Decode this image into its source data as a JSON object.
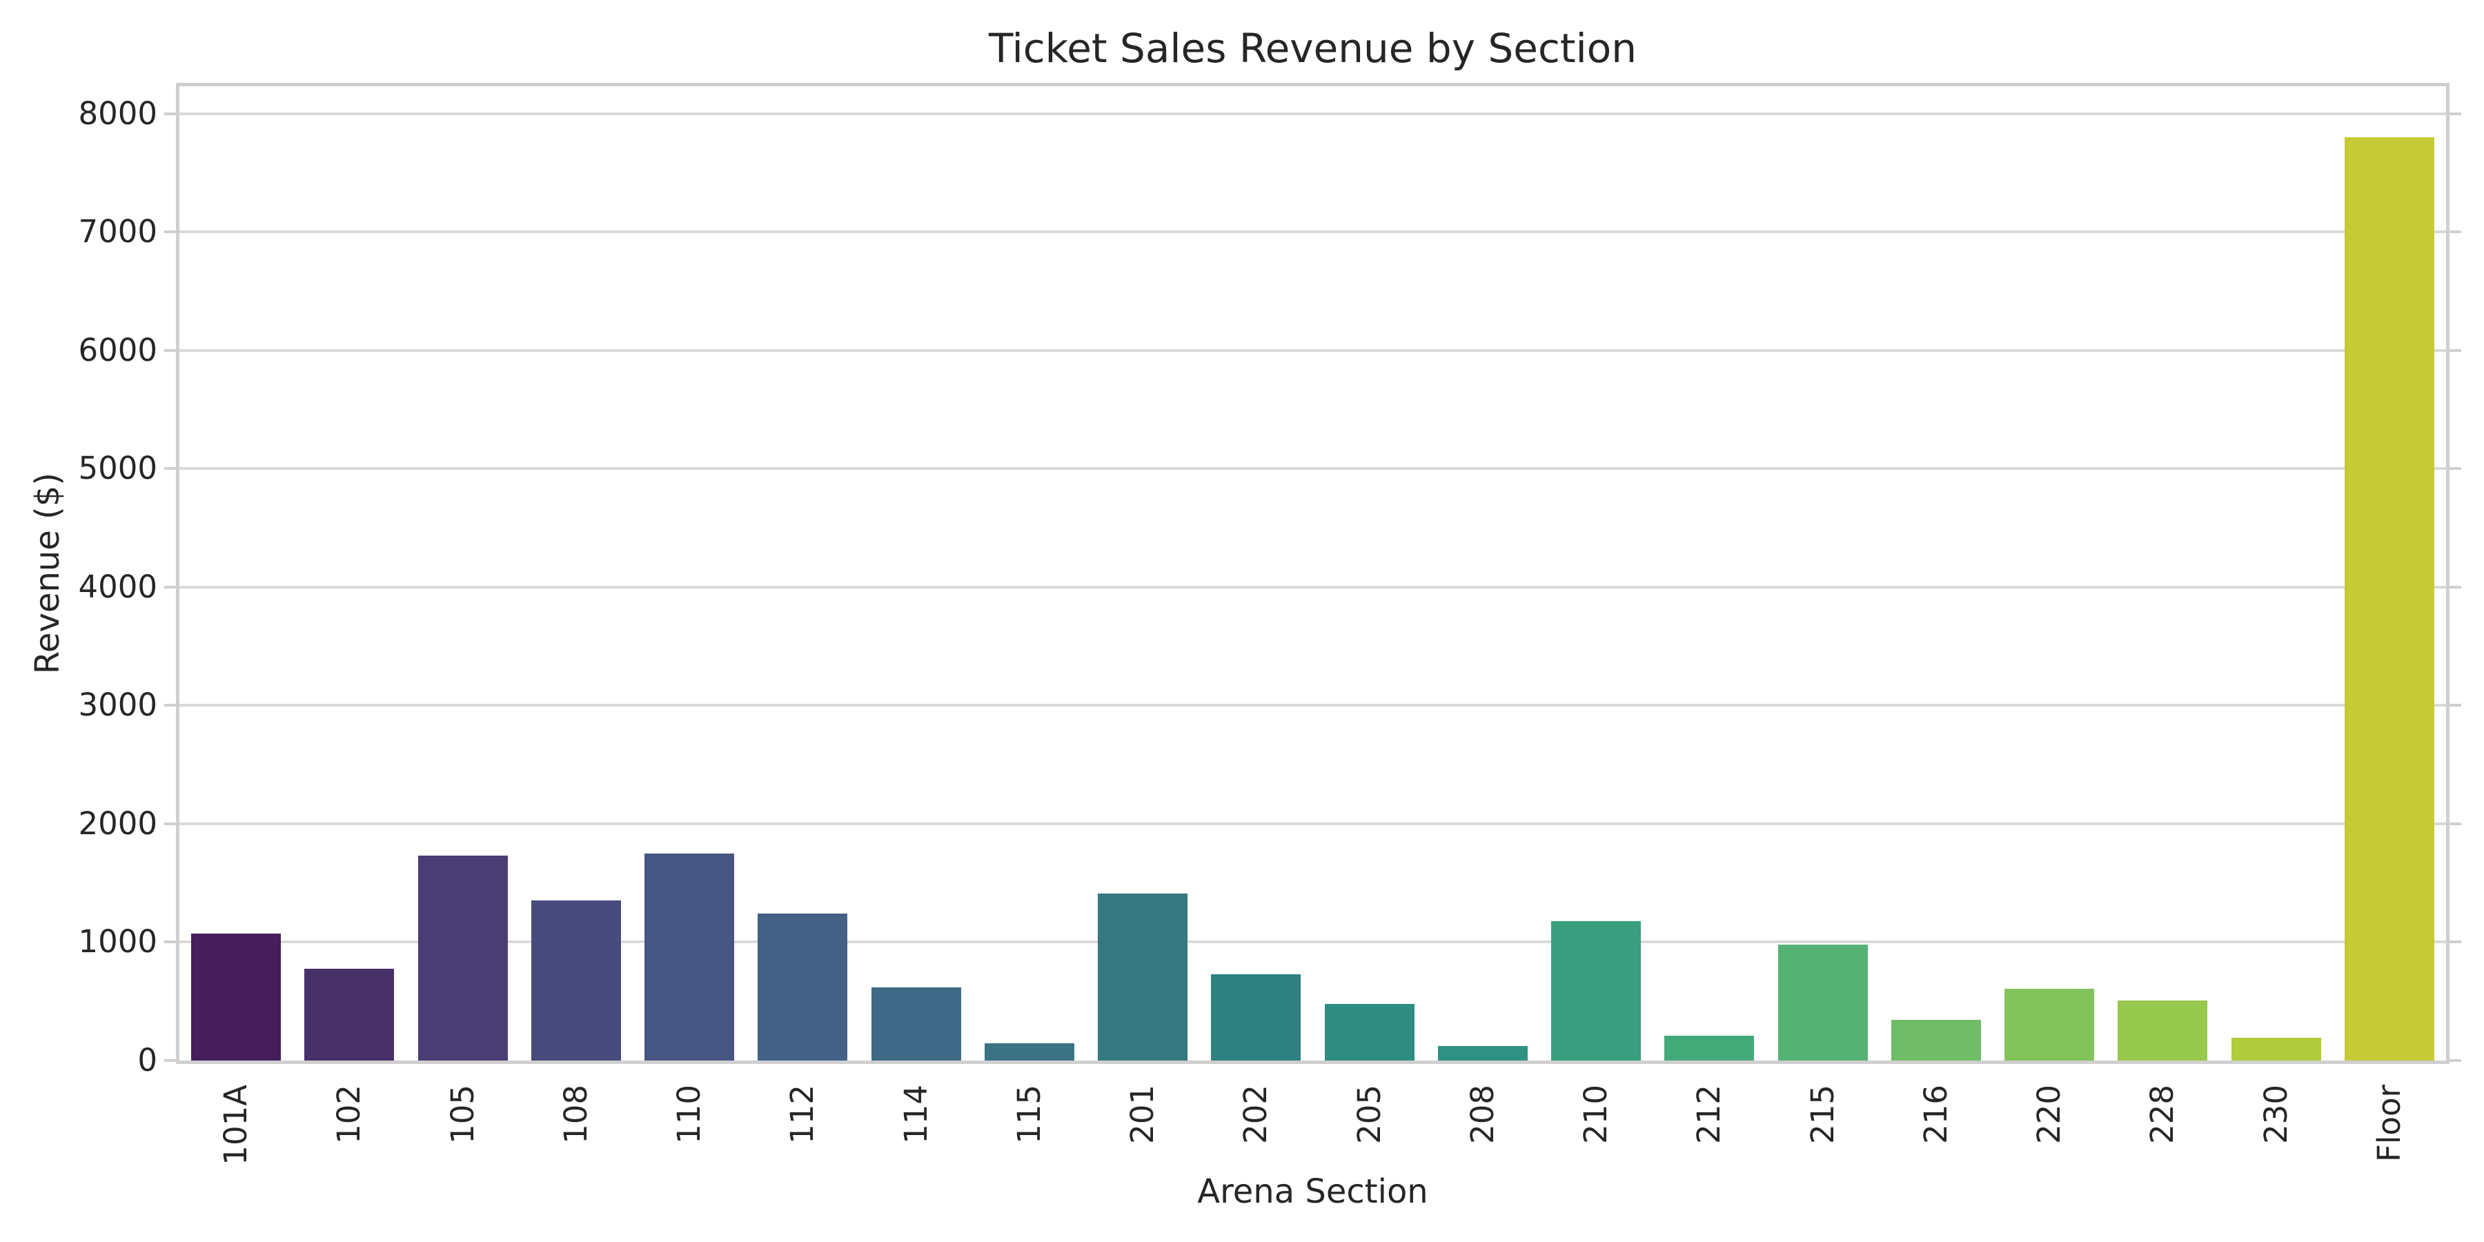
{
  "chart_data": {
    "type": "bar",
    "title": "Ticket Sales Revenue by Section",
    "xlabel": "Arena Section",
    "ylabel": "Revenue ($)",
    "categories": [
      "101A",
      "102",
      "105",
      "108",
      "110",
      "112",
      "114",
      "115",
      "201",
      "202",
      "205",
      "208",
      "210",
      "212",
      "215",
      "216",
      "220",
      "228",
      "230",
      "Floor"
    ],
    "values": [
      1070,
      775,
      1730,
      1350,
      1750,
      1240,
      620,
      145,
      1410,
      730,
      480,
      120,
      1180,
      210,
      980,
      345,
      605,
      505,
      190,
      7800
    ],
    "bar_colors": [
      "#461e59",
      "#483069",
      "#4a3d75",
      "#474b7d",
      "#475583",
      "#436185",
      "#3e6a85",
      "#3a7484",
      "#35787f",
      "#2f8080",
      "#2e8d80",
      "#2f9181",
      "#389e7e",
      "#44a979",
      "#56b274",
      "#70bd67",
      "#82c35c",
      "#97c94d",
      "#b0cb3c",
      "#c6cb35"
    ],
    "ylim": [
      0,
      8230
    ],
    "yticks": [
      0,
      1000,
      2000,
      3000,
      4000,
      5000,
      6000,
      7000,
      8000
    ],
    "grid": "horizontal",
    "legend_position": "none",
    "palette": "viridis-desaturated",
    "styles": {
      "grid_color": "#d9d9d9",
      "spine_color": "#cfcfcf",
      "text_color": "#262626",
      "background": "#ffffff"
    }
  }
}
